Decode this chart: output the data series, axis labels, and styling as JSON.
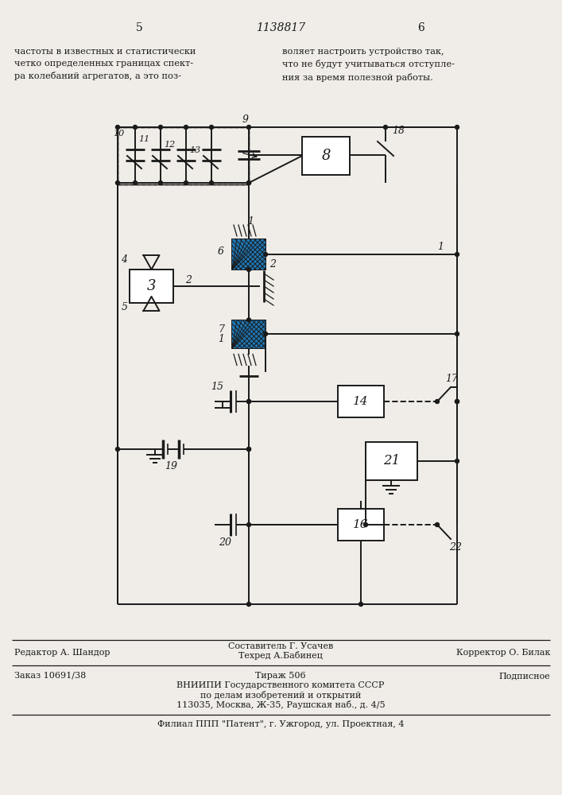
{
  "bg_color": "#f0ede8",
  "line_color": "#1a1a1a",
  "page_number_left": "5",
  "page_number_center": "1138817",
  "page_number_right": "6",
  "text_left": "частоты в известных и статистически\nчетко определенных границах спект-\nра колебаний агрегатов, а это поз-",
  "text_right": "воляет настроить устройство так,\nчто не будут учитываться отступле-\nния за время полезной работы.",
  "footer_line1_col1": "Редактор А. Шандор",
  "footer_col2_top": "Составитель Г. Усачев",
  "footer_col2_bot": "Техред А.Бабинец",
  "footer_line1_col3": "Корректор О. Билак",
  "footer_line2_col1": "Заказ 10691/38",
  "footer_line2_col2": "Тираж 506",
  "footer_line2_col3": "Подписное",
  "footer_line3": "ВНИИПИ Государственного комитета СССР",
  "footer_line4": "по делам изобретений и открытий",
  "footer_line5": "113035, Москва, Ж-35, Раушская наб., д. 4/5",
  "footer_line6": "Филиал ППП \"Патент\", г. Ужгород, ул. Проектная, 4"
}
